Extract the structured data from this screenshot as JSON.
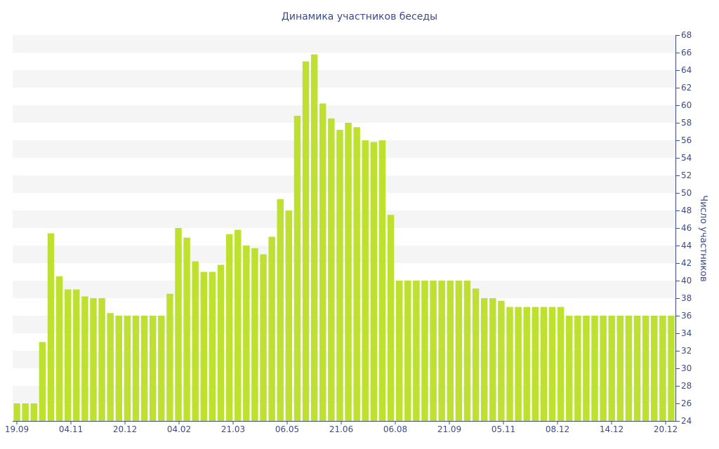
{
  "chart_data": {
    "type": "bar",
    "title": "Динамика участников беседы",
    "xlabel": "",
    "ylabel": "Число участников",
    "ylim": [
      24,
      68
    ],
    "ytick_step": 2,
    "y_axis_side": "right",
    "grid": "alternating horizontal bands",
    "legend": "none",
    "bar_color": "#bde031",
    "x_tick_labels": [
      "19.09",
      "04.11",
      "20.12",
      "04.02",
      "21.03",
      "06.05",
      "21.06",
      "06.08",
      "21.09",
      "05.11",
      "08.12",
      "14.12",
      "20.12"
    ],
    "values": [
      26,
      26,
      26,
      33,
      45.4,
      40.5,
      39,
      39,
      38.2,
      38,
      38,
      36.3,
      36,
      36,
      36,
      36,
      36,
      36,
      38.5,
      46,
      44.9,
      42.2,
      41,
      41,
      41.8,
      45.3,
      45.8,
      44,
      43.7,
      43,
      45,
      49.3,
      48,
      58.8,
      65,
      65.8,
      60.2,
      58.5,
      57.2,
      58,
      57.5,
      56,
      55.8,
      56,
      47.5,
      40,
      40,
      40,
      40,
      40,
      40,
      40,
      40,
      40,
      39.1,
      38,
      38,
      37.7,
      37,
      37,
      37,
      37,
      37,
      37,
      37,
      36,
      36,
      36,
      36,
      36,
      36,
      36,
      36,
      36,
      36,
      36,
      36,
      36
    ]
  }
}
